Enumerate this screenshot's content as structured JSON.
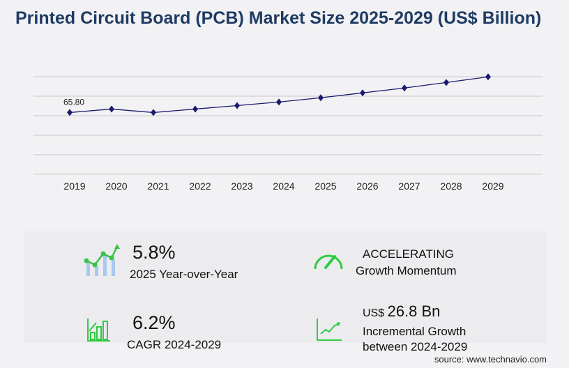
{
  "title": "Printed Circuit Board (PCB) Market Size 2025-2029 (US$ Billion)",
  "chart_data": {
    "type": "line",
    "title": "Printed Circuit Board (PCB) Market Size 2025-2029 (US$ Billion)",
    "categories": [
      "2019",
      "2020",
      "2021",
      "2022",
      "2023",
      "2024",
      "2025",
      "2026",
      "2027",
      "2028",
      "2029"
    ],
    "values": [
      65.8,
      69.5,
      65.8,
      69.5,
      73.2,
      77.0,
      81.5,
      86.7,
      91.9,
      97.8,
      103.8
    ],
    "data_labels": {
      "2019": "65.80"
    },
    "ylim": [
      0,
      104
    ],
    "grid": true,
    "line_color": "#1a1a6e",
    "marker": "diamond"
  },
  "stats": {
    "yoy_value": "5.8%",
    "yoy_label": "2025 Year-over-Year",
    "momentum_value": "ACCELERATING",
    "momentum_label": "Growth Momentum",
    "cagr_value": "6.2%",
    "cagr_label": "CAGR 2024-2029",
    "incr_prefix": "US$",
    "incr_value": "26.8 Bn",
    "incr_label1": "Incremental Growth",
    "incr_label2": "between 2024-2029"
  },
  "source": "source: www.technavio.com",
  "colors": {
    "accent_green": "#2ecc40",
    "title": "#1f3b63",
    "line": "#1a1a6e"
  }
}
